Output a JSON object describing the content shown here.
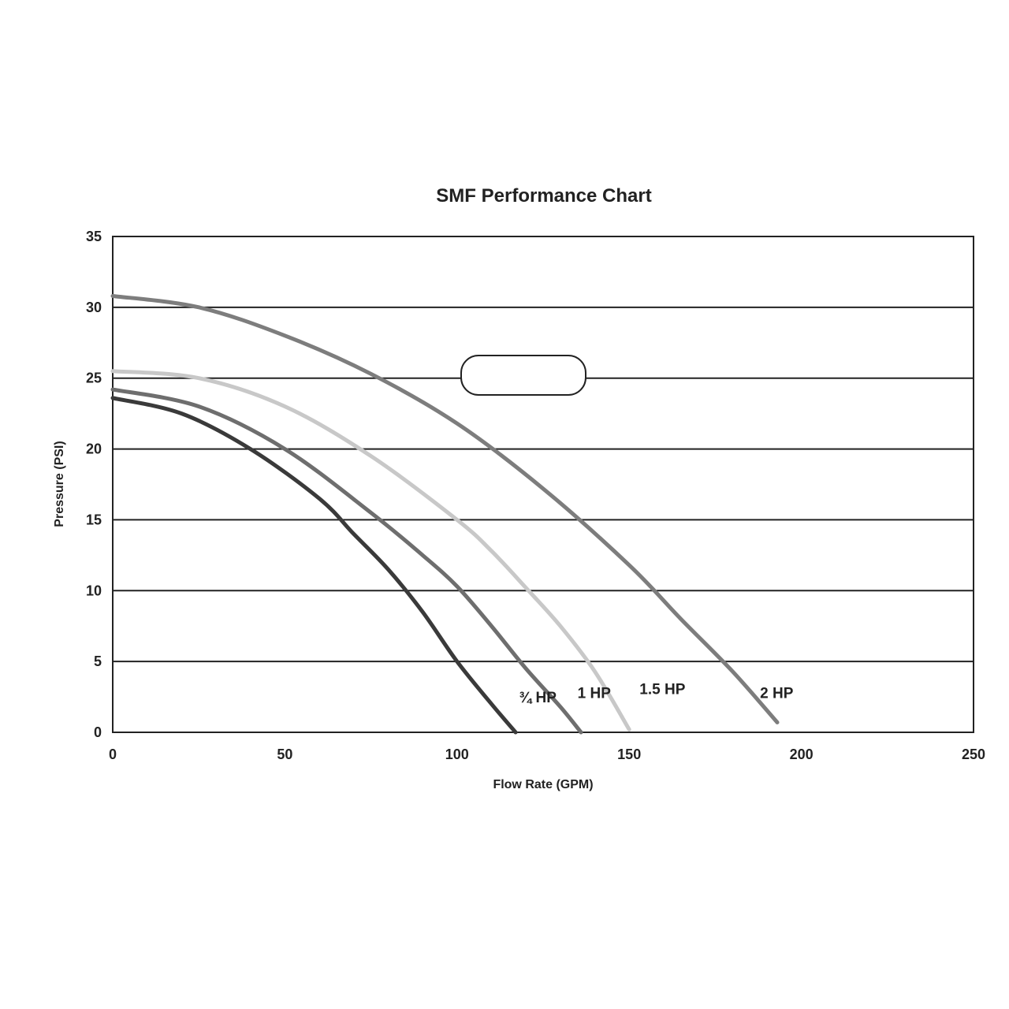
{
  "chart_data": {
    "type": "line",
    "title": "SMF Performance Chart",
    "xlabel": "Flow Rate (GPM)",
    "ylabel": "Pressure (PSI)",
    "xlim": [
      0,
      250
    ],
    "ylim": [
      0,
      35
    ],
    "xticks": [
      "0",
      "50",
      "100",
      "150",
      "200",
      "250"
    ],
    "yticks": [
      "0",
      "5",
      "10",
      "15",
      "20",
      "25",
      "30",
      "35"
    ],
    "grid": "horizontal",
    "series": [
      {
        "name": "¾ HP",
        "color": "#3a3a3a",
        "x": [
          0,
          20,
          40,
          60,
          70,
          80,
          90,
          100,
          110,
          117
        ],
        "y": [
          23.6,
          22.5,
          20.0,
          16.5,
          14.0,
          11.5,
          8.5,
          5.0,
          2.0,
          0
        ]
      },
      {
        "name": "1 HP",
        "color": "#6e6e6e",
        "x": [
          0,
          25,
          50,
          75,
          90,
          100,
          110,
          120,
          130,
          136
        ],
        "y": [
          24.2,
          23.0,
          20.0,
          15.5,
          12.5,
          10.3,
          7.5,
          4.5,
          1.8,
          0
        ]
      },
      {
        "name": "1.5 HP",
        "color": "#c8c8c8",
        "x": [
          0,
          25,
          50,
          75,
          100,
          110,
          120,
          130,
          140,
          150
        ],
        "y": [
          25.5,
          25.0,
          23.0,
          19.5,
          15.0,
          12.8,
          10.2,
          7.5,
          4.3,
          0.2
        ]
      },
      {
        "name": "2 HP",
        "color": "#7d7d7d",
        "x": [
          0,
          25,
          50,
          75,
          100,
          125,
          150,
          165,
          180,
          193
        ],
        "y": [
          30.8,
          30.0,
          28.0,
          25.3,
          21.8,
          17.2,
          11.8,
          8.0,
          4.3,
          0.7
        ]
      }
    ],
    "label_positions": [
      {
        "text": "¾ HP",
        "x": 118,
        "y": 2.5
      },
      {
        "text": "1 HP",
        "x": 135,
        "y": 2.8
      },
      {
        "text": "1.5 HP",
        "x": 153,
        "y": 3.1
      },
      {
        "text": "2 HP",
        "x": 188,
        "y": 2.8
      }
    ]
  }
}
